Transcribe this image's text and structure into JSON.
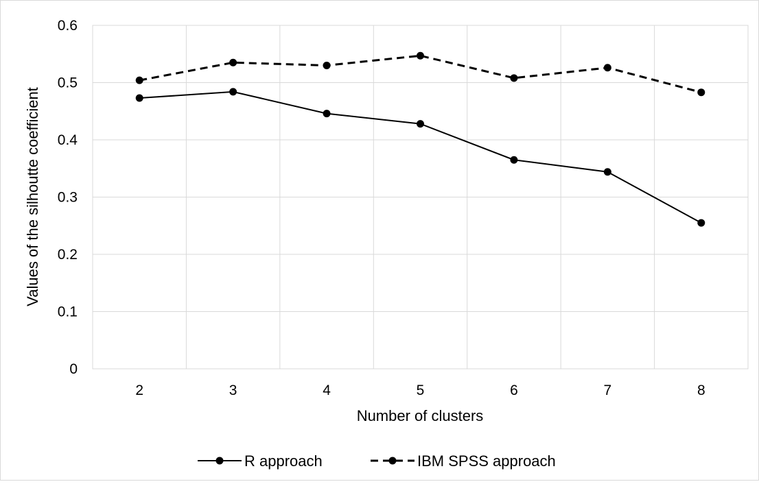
{
  "chart_data": {
    "type": "line",
    "title": "",
    "xlabel": "Number of clusters",
    "ylabel": "Values of the silhoutte coefficient",
    "categories": [
      "2",
      "3",
      "4",
      "5",
      "6",
      "7",
      "8"
    ],
    "ylim": [
      0,
      0.6
    ],
    "yticks": [
      "0",
      "0.1",
      "0.2",
      "0.3",
      "0.4",
      "0.5",
      "0.6"
    ],
    "grid": true,
    "legend_position": "bottom",
    "series": [
      {
        "name": "R approach",
        "line_style": "solid",
        "color": "#000000",
        "values": [
          0.473,
          0.484,
          0.446,
          0.428,
          0.365,
          0.344,
          0.255
        ]
      },
      {
        "name": "IBM SPSS approach",
        "line_style": "dashed",
        "color": "#000000",
        "values": [
          0.504,
          0.535,
          0.53,
          0.547,
          0.508,
          0.526,
          0.483
        ]
      }
    ]
  },
  "colors": {
    "grid": "#d9d9d9",
    "frame": "#d9d9d9",
    "series": "#000000"
  }
}
